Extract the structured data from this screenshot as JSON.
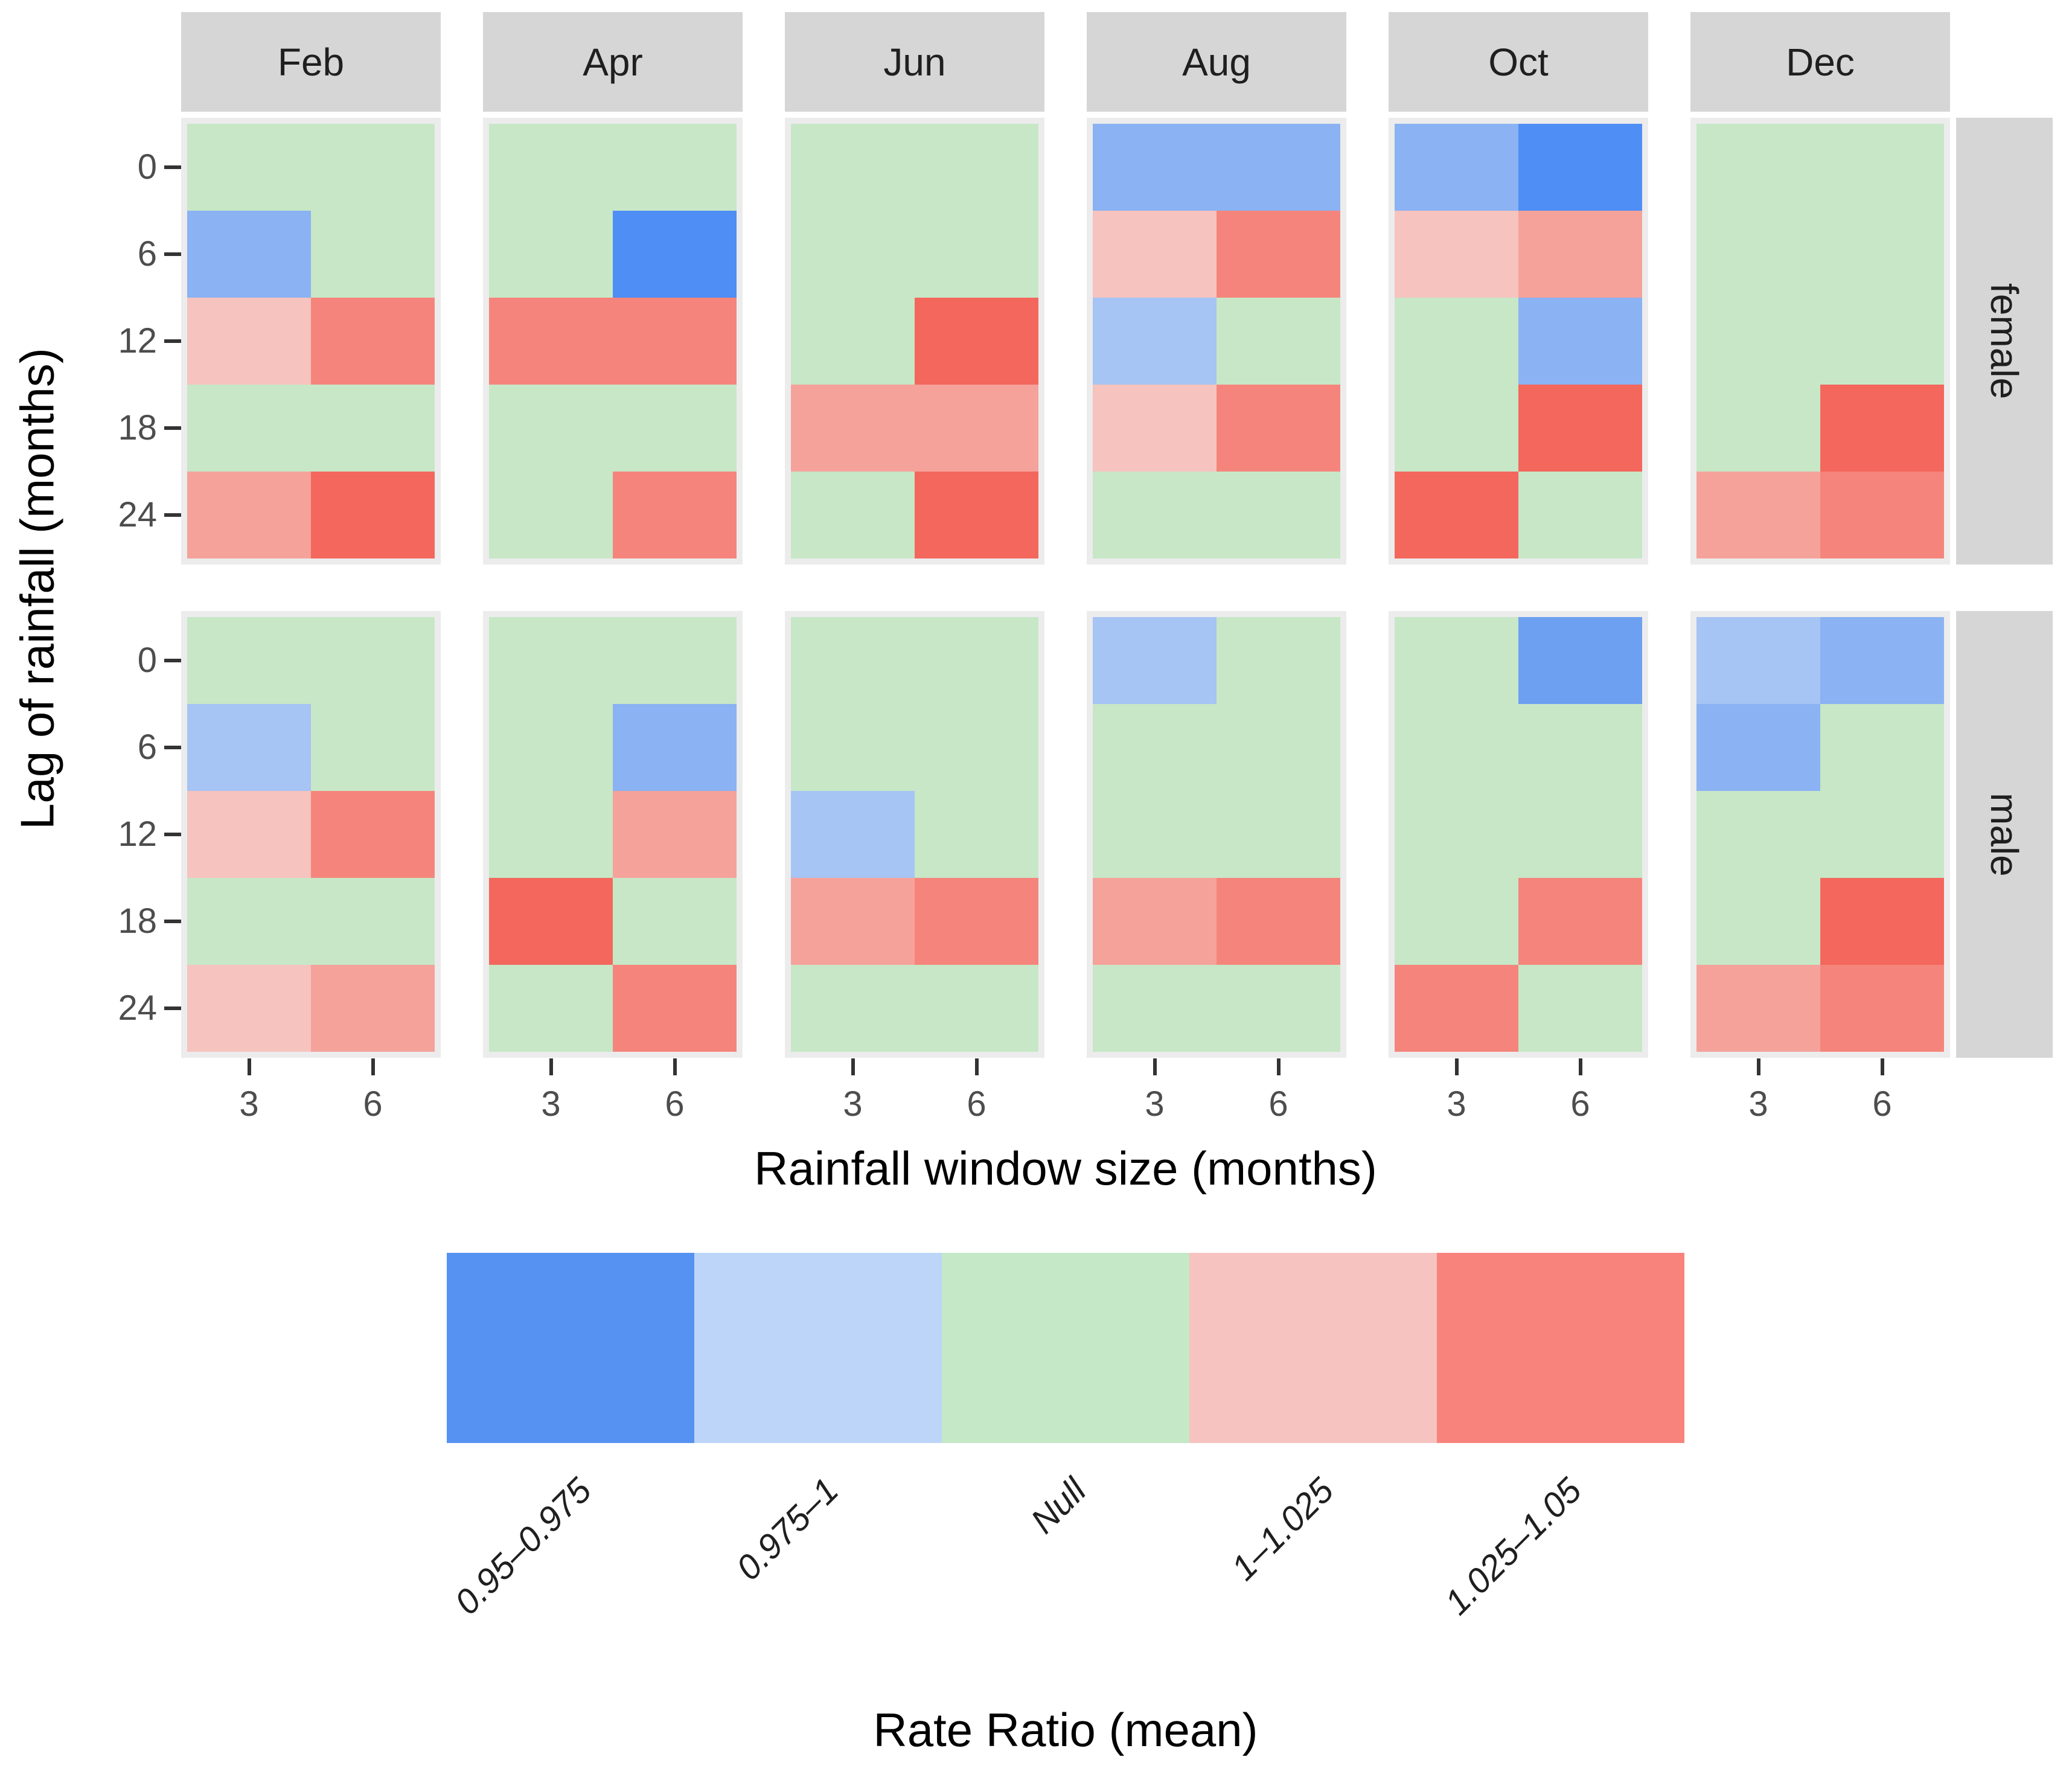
{
  "facets": {
    "columns": [
      "Feb",
      "Apr",
      "Jun",
      "Aug",
      "Oct",
      "Dec"
    ],
    "rows": [
      "female",
      "male"
    ]
  },
  "y_axis": {
    "title": "Lag of rainfall (months)",
    "ticks": [
      "0",
      "6",
      "12",
      "18",
      "24"
    ]
  },
  "x_axis": {
    "title": "Rainfall window size (months)",
    "ticks": [
      "3",
      "6"
    ]
  },
  "legend": {
    "title": "Rate Ratio (mean)",
    "items": [
      {
        "label": "0.95–0.975",
        "color": "#5592f2",
        "textured": false
      },
      {
        "label": "0.975–1",
        "color": "#bdd5f8",
        "textured": false
      },
      {
        "label": "Null",
        "color": "#c5e8c6",
        "textured": false
      },
      {
        "label": "1–1.025",
        "color": "#f7c3c0",
        "textured": true
      },
      {
        "label": "1.025–1.05",
        "color": "#f8837d",
        "textured": false
      }
    ]
  },
  "colors": {
    "strip_bg": "#d6d6d6",
    "panel_bg": "#ececec",
    "tick": "#333333",
    "tick_label": "#4d4d4d"
  },
  "chart_data": {
    "type": "heatmap",
    "title": "Rate Ratio (mean) by rainfall window size and lag, faceted by month and sex",
    "x": [
      3,
      6
    ],
    "y": [
      0,
      6,
      12,
      18,
      24
    ],
    "xlabel": "Rainfall window size (months)",
    "ylabel": "Lag of rainfall (months)",
    "facet_columns": [
      "Feb",
      "Apr",
      "Jun",
      "Aug",
      "Oct",
      "Dec"
    ],
    "facet_rows": [
      "female",
      "male"
    ],
    "bins": [
      "0.95–0.975",
      "0.975–1",
      "Null",
      "1–1.025",
      "1.025–1.05"
    ],
    "palette": {
      "G": "#c7e7c7",
      "b1": "#a6c4f4",
      "b2": "#8bb2f2",
      "b2d": "#6da0f1",
      "b3": "#4f8ef5",
      "r1": "#f6c3bf",
      "r2": "#f5a29b",
      "r3": "#f5857c",
      "r4": "#f4675c"
    },
    "tone_bins": {
      "G": "Null",
      "b1": "0.975–1",
      "b2": "0.975–1",
      "b2d": "0.95–0.975",
      "b3": "0.95–0.975",
      "r1": "1–1.025",
      "r2": "1–1.025",
      "r3": "1.025–1.05",
      "r4": "1.025–1.05"
    },
    "cells": {
      "female": {
        "Feb": [
          [
            "G",
            "G"
          ],
          [
            "b2",
            "G"
          ],
          [
            "r1",
            "r3"
          ],
          [
            "G",
            "G"
          ],
          [
            "r2",
            "r4"
          ]
        ],
        "Apr": [
          [
            "G",
            "G"
          ],
          [
            "G",
            "b3"
          ],
          [
            "r3",
            "r3"
          ],
          [
            "G",
            "G"
          ],
          [
            "G",
            "r3"
          ]
        ],
        "Jun": [
          [
            "G",
            "G"
          ],
          [
            "G",
            "G"
          ],
          [
            "G",
            "r4"
          ],
          [
            "r2",
            "r2"
          ],
          [
            "G",
            "r4"
          ]
        ],
        "Aug": [
          [
            "b2",
            "b2"
          ],
          [
            "r1",
            "r3"
          ],
          [
            "b1",
            "G"
          ],
          [
            "r1",
            "r3"
          ],
          [
            "G",
            "G"
          ]
        ],
        "Oct": [
          [
            "b2",
            "b3"
          ],
          [
            "r1",
            "r2"
          ],
          [
            "G",
            "b2"
          ],
          [
            "G",
            "r4"
          ],
          [
            "r4",
            "G"
          ]
        ],
        "Dec": [
          [
            "G",
            "G"
          ],
          [
            "G",
            "G"
          ],
          [
            "G",
            "G"
          ],
          [
            "G",
            "r4"
          ],
          [
            "r2",
            "r3"
          ]
        ]
      },
      "male": {
        "Feb": [
          [
            "G",
            "G"
          ],
          [
            "b1",
            "G"
          ],
          [
            "r1",
            "r3"
          ],
          [
            "G",
            "G"
          ],
          [
            "r1",
            "r2"
          ]
        ],
        "Apr": [
          [
            "G",
            "G"
          ],
          [
            "G",
            "b2"
          ],
          [
            "G",
            "r2"
          ],
          [
            "r4",
            "G"
          ],
          [
            "G",
            "r3"
          ]
        ],
        "Jun": [
          [
            "G",
            "G"
          ],
          [
            "G",
            "G"
          ],
          [
            "b1",
            "G"
          ],
          [
            "r2",
            "r3"
          ],
          [
            "G",
            "G"
          ]
        ],
        "Aug": [
          [
            "b1",
            "G"
          ],
          [
            "G",
            "G"
          ],
          [
            "G",
            "G"
          ],
          [
            "r2",
            "r3"
          ],
          [
            "G",
            "G"
          ]
        ],
        "Oct": [
          [
            "G",
            "b2d"
          ],
          [
            "G",
            "G"
          ],
          [
            "G",
            "G"
          ],
          [
            "G",
            "r3"
          ],
          [
            "r3",
            "G"
          ]
        ],
        "Dec": [
          [
            "b1",
            "b2"
          ],
          [
            "b2",
            "G"
          ],
          [
            "G",
            "G"
          ],
          [
            "G",
            "r4"
          ],
          [
            "r2",
            "r3"
          ]
        ]
      }
    }
  }
}
